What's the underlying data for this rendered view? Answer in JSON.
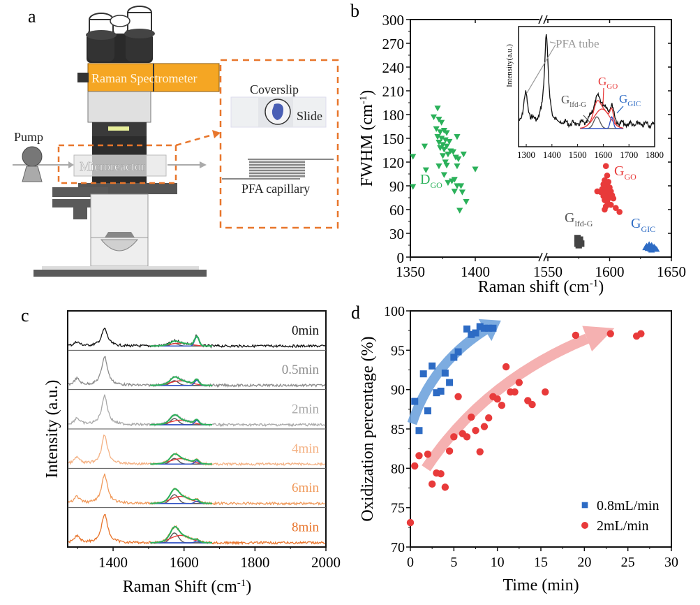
{
  "panels": {
    "a": {
      "label": "a",
      "texts": {
        "spectrometer": "Raman Spectrometer",
        "pump": "Pump",
        "microreactor": "Microreactor",
        "coverslip": "Coverslip",
        "slide": "Slide",
        "capillary": "PFA capillary"
      },
      "colors": {
        "spectrometer": "#f5a623",
        "dash": "#e8762b"
      }
    },
    "b": {
      "label": "b"
    },
    "c": {
      "label": "c"
    },
    "d": {
      "label": "d"
    }
  },
  "chart_data": [
    {
      "id": "b",
      "type": "scatter",
      "title": "",
      "xlabel": "Raman shift (cm-1)",
      "ylabel": "FWHM (cm-1)",
      "xlim": [
        1350,
        1650
      ],
      "x_break": [
        1410,
        1550
      ],
      "ylim": [
        0,
        300
      ],
      "xticks": [
        1350,
        1400,
        1550,
        1600,
        1650
      ],
      "yticks": [
        0,
        30,
        60,
        90,
        120,
        150,
        180,
        210,
        240,
        270,
        300
      ],
      "series": [
        {
          "name": "D_GO",
          "label_main": "D",
          "label_sub": "GO",
          "color": "#2bb15a",
          "marker": "triangle-down",
          "points": [
            [
              1371,
              188
            ],
            [
              1368,
              177
            ],
            [
              1372,
              174
            ],
            [
              1374,
              170
            ],
            [
              1370,
              162
            ],
            [
              1373,
              158
            ],
            [
              1376,
              160
            ],
            [
              1378,
              157
            ],
            [
              1371,
              152
            ],
            [
              1374,
              150
            ],
            [
              1377,
              148
            ],
            [
              1380,
              146
            ],
            [
              1372,
              145
            ],
            [
              1375,
              142
            ],
            [
              1378,
              140
            ],
            [
              1373,
              138
            ],
            [
              1376,
              136
            ],
            [
              1381,
              134
            ],
            [
              1383,
              133
            ],
            [
              1386,
              152
            ],
            [
              1379,
              130
            ],
            [
              1375,
              128
            ],
            [
              1385,
              126
            ],
            [
              1387,
              124
            ],
            [
              1391,
              130
            ],
            [
              1361,
              140
            ],
            [
              1352,
              127
            ],
            [
              1377,
              120
            ],
            [
              1372,
              115
            ],
            [
              1378,
              116
            ],
            [
              1386,
              115
            ],
            [
              1400,
              111
            ],
            [
              1362,
              110
            ],
            [
              1376,
              104
            ],
            [
              1384,
              98
            ],
            [
              1382,
              96
            ],
            [
              1379,
              94
            ],
            [
              1386,
              90
            ],
            [
              1389,
              90
            ],
            [
              1352,
              89
            ],
            [
              1384,
              83
            ],
            [
              1390,
              82
            ],
            [
              1393,
              70
            ],
            [
              1388,
              59
            ]
          ]
        },
        {
          "name": "G_GO",
          "label_main": "G",
          "label_sub": "GO",
          "color": "#e83a3a",
          "marker": "circle",
          "points": [
            [
              1597,
              115
            ],
            [
              1598,
              103
            ],
            [
              1596,
              97
            ],
            [
              1599,
              95
            ],
            [
              1595,
              92
            ],
            [
              1598,
              90
            ],
            [
              1600,
              88
            ],
            [
              1594,
              86
            ],
            [
              1597,
              85
            ],
            [
              1599,
              84
            ],
            [
              1601,
              83
            ],
            [
              1593,
              82
            ],
            [
              1596,
              81
            ],
            [
              1598,
              80
            ],
            [
              1600,
              78
            ],
            [
              1595,
              77
            ],
            [
              1597,
              76
            ],
            [
              1602,
              78
            ],
            [
              1599,
              74
            ],
            [
              1596,
              72
            ],
            [
              1598,
              70
            ],
            [
              1601,
              66
            ],
            [
              1597,
              64
            ],
            [
              1596,
              60
            ],
            [
              1605,
              62
            ],
            [
              1608,
              57
            ],
            [
              1590,
              83
            ],
            [
              1603,
              74
            ]
          ]
        },
        {
          "name": "G_lfd-G",
          "label_main": "G",
          "label_sub": "lfd-G",
          "color": "#444444",
          "marker": "square",
          "points": [
            [
              1574,
              24
            ],
            [
              1575,
              21
            ],
            [
              1576,
              19
            ],
            [
              1574,
              17
            ],
            [
              1577,
              17
            ],
            [
              1575,
              15
            ],
            [
              1576,
              22
            ]
          ]
        },
        {
          "name": "G_GIC",
          "label_main": "G",
          "label_sub": "GIC",
          "color": "#2d6bc4",
          "marker": "triangle-up",
          "points": [
            [
              1630,
              14
            ],
            [
              1632,
              16
            ],
            [
              1634,
              15
            ],
            [
              1636,
              13
            ],
            [
              1631,
              11
            ],
            [
              1633,
              10
            ],
            [
              1635,
              12
            ],
            [
              1637,
              11
            ],
            [
              1638,
              10
            ],
            [
              1629,
              12
            ],
            [
              1634,
              9
            ]
          ]
        }
      ],
      "inset": {
        "type": "line",
        "ylabel": "Intensity(a.u.)",
        "xlim": [
          1270,
          1800
        ],
        "xticks": [
          1300,
          1400,
          1500,
          1600,
          1700,
          1800
        ],
        "annotations": [
          "PFA tube",
          "G_lfd-G",
          "G_GO",
          "G_GIC"
        ],
        "annotation_colors": {
          "PFA tube": "#999999",
          "G_lfd-G": "#555555",
          "G_GO": "#e83a3a",
          "G_GIC": "#2d6bc4"
        }
      }
    },
    {
      "id": "c",
      "type": "line",
      "title": "",
      "xlabel": "Raman Shift (cm-1)",
      "ylabel": "Intensity (a.u.)",
      "xlim": [
        1272,
        2000
      ],
      "xticks": [
        1400,
        1600,
        1800,
        2000
      ],
      "series": [
        {
          "name": "0min",
          "color": "#111111",
          "gio_ratio": 1.0,
          "go_ratio": 0.35,
          "lfd_ratio": 0.25
        },
        {
          "name": "0.5min",
          "color": "#8c8c8c",
          "gio_ratio": 0.55,
          "go_ratio": 0.55,
          "lfd_ratio": 0.45
        },
        {
          "name": "2min",
          "color": "#a8a8a8",
          "gio_ratio": 0.45,
          "go_ratio": 0.55,
          "lfd_ratio": 0.6
        },
        {
          "name": "4min",
          "color": "#f4b183",
          "gio_ratio": 0.35,
          "go_ratio": 0.65,
          "lfd_ratio": 0.55
        },
        {
          "name": "6min",
          "color": "#f0995a",
          "gio_ratio": 0.25,
          "go_ratio": 0.85,
          "lfd_ratio": 0.85
        },
        {
          "name": "8min",
          "color": "#e8742b",
          "gio_ratio": 0.18,
          "go_ratio": 0.9,
          "lfd_ratio": 0.95
        }
      ],
      "fit_colors": {
        "envelope": "#2bb15a",
        "go": "#e83a3a",
        "lfd": "#555555",
        "gic": "#2d4fc4"
      }
    },
    {
      "id": "d",
      "type": "scatter",
      "title": "",
      "xlabel": "Time (min)",
      "ylabel": "Oxidization percentage (%)",
      "xlim": [
        0,
        30
      ],
      "ylim": [
        70,
        100
      ],
      "xticks": [
        0,
        5,
        10,
        15,
        20,
        25,
        30
      ],
      "yticks": [
        70,
        75,
        80,
        85,
        90,
        95,
        100
      ],
      "legend": "bottom-right",
      "series": [
        {
          "name": "0.8mL/min",
          "color": "#2d6bc4",
          "marker": "square",
          "points": [
            [
              0.5,
              88.5
            ],
            [
              1,
              84.8
            ],
            [
              1.5,
              92
            ],
            [
              2,
              87.3
            ],
            [
              2.5,
              93
            ],
            [
              3,
              89.6
            ],
            [
              3.5,
              89.8
            ],
            [
              4,
              92.1
            ],
            [
              4.5,
              90.9
            ],
            [
              5,
              94.1
            ],
            [
              5.5,
              94.8
            ],
            [
              6.5,
              97.7
            ],
            [
              7,
              97
            ],
            [
              7.5,
              97.2
            ],
            [
              8,
              98
            ],
            [
              8.5,
              97.8
            ],
            [
              9,
              97.8
            ],
            [
              9.5,
              97.8
            ]
          ]
        },
        {
          "name": "2mL/min",
          "color": "#e83a3a",
          "marker": "circle",
          "points": [
            [
              0,
              73.1
            ],
            [
              0.5,
              80.3
            ],
            [
              1,
              81.6
            ],
            [
              2,
              81.8
            ],
            [
              2.5,
              78
            ],
            [
              3,
              79.4
            ],
            [
              3.5,
              79.3
            ],
            [
              4,
              77.6
            ],
            [
              4.5,
              82.2
            ],
            [
              5,
              84
            ],
            [
              5.5,
              89.1
            ],
            [
              6,
              84.4
            ],
            [
              6.5,
              84
            ],
            [
              7,
              86.5
            ],
            [
              7.5,
              84.8
            ],
            [
              8,
              82.1
            ],
            [
              8.5,
              85.3
            ],
            [
              9,
              86.4
            ],
            [
              9.5,
              89.1
            ],
            [
              10,
              88.8
            ],
            [
              10.5,
              88
            ],
            [
              11,
              92.9
            ],
            [
              11.5,
              89.7
            ],
            [
              12,
              89.7
            ],
            [
              12.5,
              90.9
            ],
            [
              13.5,
              88.6
            ],
            [
              14,
              88.1
            ],
            [
              15.5,
              89.7
            ],
            [
              19,
              96.9
            ],
            [
              23,
              97.1
            ],
            [
              26,
              96.8
            ],
            [
              26.5,
              97.1
            ]
          ]
        }
      ],
      "trend_arrows": [
        {
          "series": "0.8mL/min",
          "color": "#6fa3dd",
          "from": [
            0.2,
            85.7
          ],
          "to": [
            10,
            98.5
          ]
        },
        {
          "series": "2mL/min",
          "color": "#f4a9a9",
          "from": [
            1.8,
            80
          ],
          "to": [
            23,
            97.6
          ]
        }
      ]
    }
  ]
}
